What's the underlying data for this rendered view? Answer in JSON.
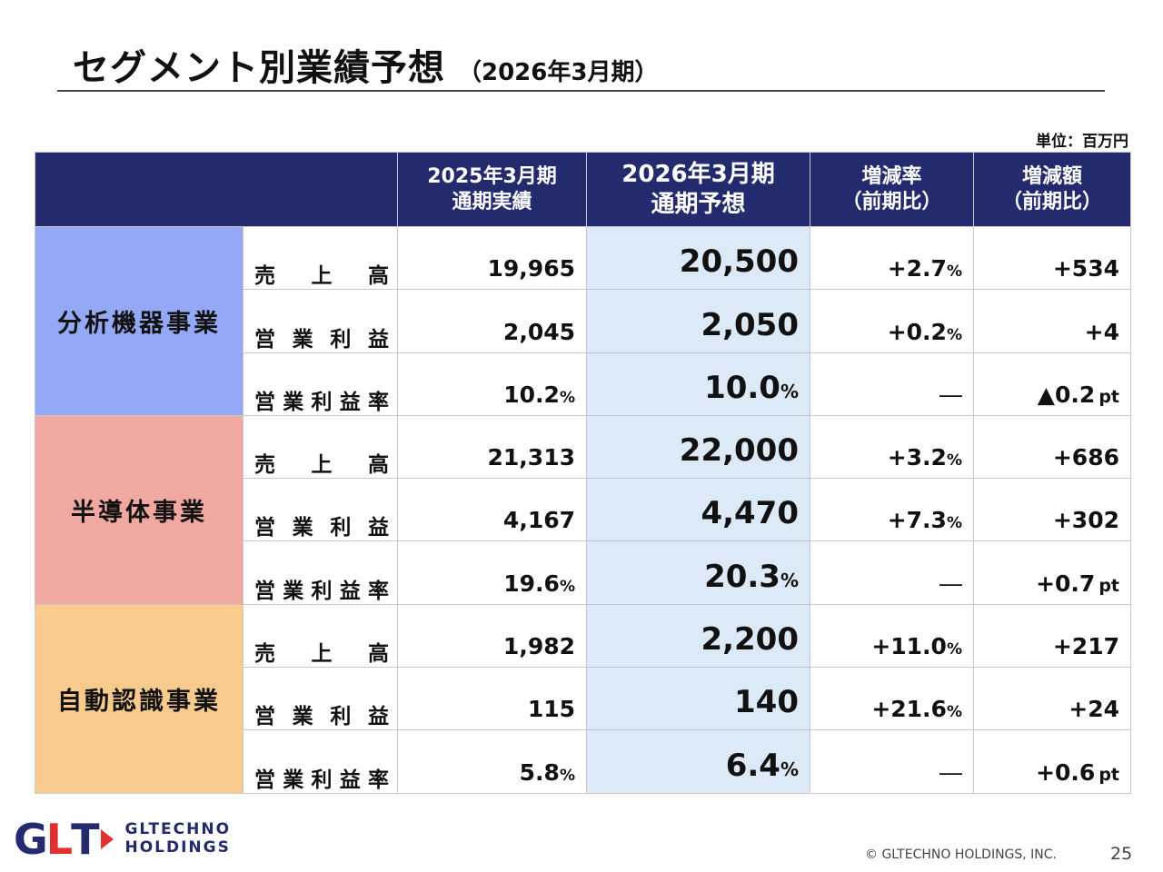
{
  "title": {
    "main": "セグメント別業績予想",
    "sub": "（2026年3月期）"
  },
  "unit": "単位：百万円",
  "table": {
    "headers": [
      {
        "line1": "2025年3月期",
        "line2": "通期実績"
      },
      {
        "line1": "2026年3月期",
        "line2": "通期予想"
      },
      {
        "line1": "増減率",
        "line2": "（前期比）"
      },
      {
        "line1": "増減額",
        "line2": "（前期比）"
      }
    ],
    "segments": [
      {
        "name": "分析機器事業",
        "color": "#93a9f6",
        "rows": [
          {
            "item": [
              "売",
              "上",
              "高"
            ],
            "actual": "19,965",
            "actual_unit": "",
            "forecast": "20,500",
            "forecast_unit": "",
            "rate": "+2.7",
            "rate_unit": "%",
            "amount": "+534",
            "amount_unit": ""
          },
          {
            "item": [
              "営",
              "業",
              "利",
              "益"
            ],
            "actual": "2,045",
            "actual_unit": "",
            "forecast": "2,050",
            "forecast_unit": "",
            "rate": "+0.2",
            "rate_unit": "%",
            "amount": "+4",
            "amount_unit": ""
          },
          {
            "item": [
              "営",
              "業",
              "利",
              "益",
              "率"
            ],
            "actual": "10.2",
            "actual_unit": "%",
            "forecast": "10.0",
            "forecast_unit": "%",
            "rate": "―",
            "rate_unit": "",
            "amount": "▲0.2",
            "amount_unit": "pt"
          }
        ]
      },
      {
        "name": "半導体事業",
        "color": "#f0a8a0",
        "rows": [
          {
            "item": [
              "売",
              "上",
              "高"
            ],
            "actual": "21,313",
            "actual_unit": "",
            "forecast": "22,000",
            "forecast_unit": "",
            "rate": "+3.2",
            "rate_unit": "%",
            "amount": "+686",
            "amount_unit": ""
          },
          {
            "item": [
              "営",
              "業",
              "利",
              "益"
            ],
            "actual": "4,167",
            "actual_unit": "",
            "forecast": "4,470",
            "forecast_unit": "",
            "rate": "+7.3",
            "rate_unit": "%",
            "amount": "+302",
            "amount_unit": ""
          },
          {
            "item": [
              "営",
              "業",
              "利",
              "益",
              "率"
            ],
            "actual": "19.6",
            "actual_unit": "%",
            "forecast": "20.3",
            "forecast_unit": "%",
            "rate": "―",
            "rate_unit": "",
            "amount": "+0.7",
            "amount_unit": "pt"
          }
        ]
      },
      {
        "name": "自動認識事業",
        "color": "#f8cb8d",
        "rows": [
          {
            "item": [
              "売",
              "上",
              "高"
            ],
            "actual": "1,982",
            "actual_unit": "",
            "forecast": "2,200",
            "forecast_unit": "",
            "rate": "+11.0",
            "rate_unit": "%",
            "amount": "+217",
            "amount_unit": ""
          },
          {
            "item": [
              "営",
              "業",
              "利",
              "益"
            ],
            "actual": "115",
            "actual_unit": "",
            "forecast": "140",
            "forecast_unit": "",
            "rate": "+21.6",
            "rate_unit": "%",
            "amount": "+24",
            "amount_unit": ""
          },
          {
            "item": [
              "営",
              "業",
              "利",
              "益",
              "率"
            ],
            "actual": "5.8",
            "actual_unit": "%",
            "forecast": "6.4",
            "forecast_unit": "%",
            "rate": "―",
            "rate_unit": "",
            "amount": "+0.6",
            "amount_unit": "pt"
          }
        ]
      }
    ]
  },
  "footer": {
    "logo_mark": {
      "g": "G",
      "l": "L",
      "t": "T"
    },
    "logo_line1": "GLTECHNO",
    "logo_line2": "HOLDINGS",
    "copyright": "© GLTECHNO HOLDINGS, INC.",
    "page_number": "25"
  },
  "colors": {
    "header_bg": "#232a6e",
    "forecast_bg": "#dce9f7",
    "brand_red": "#e03030"
  }
}
